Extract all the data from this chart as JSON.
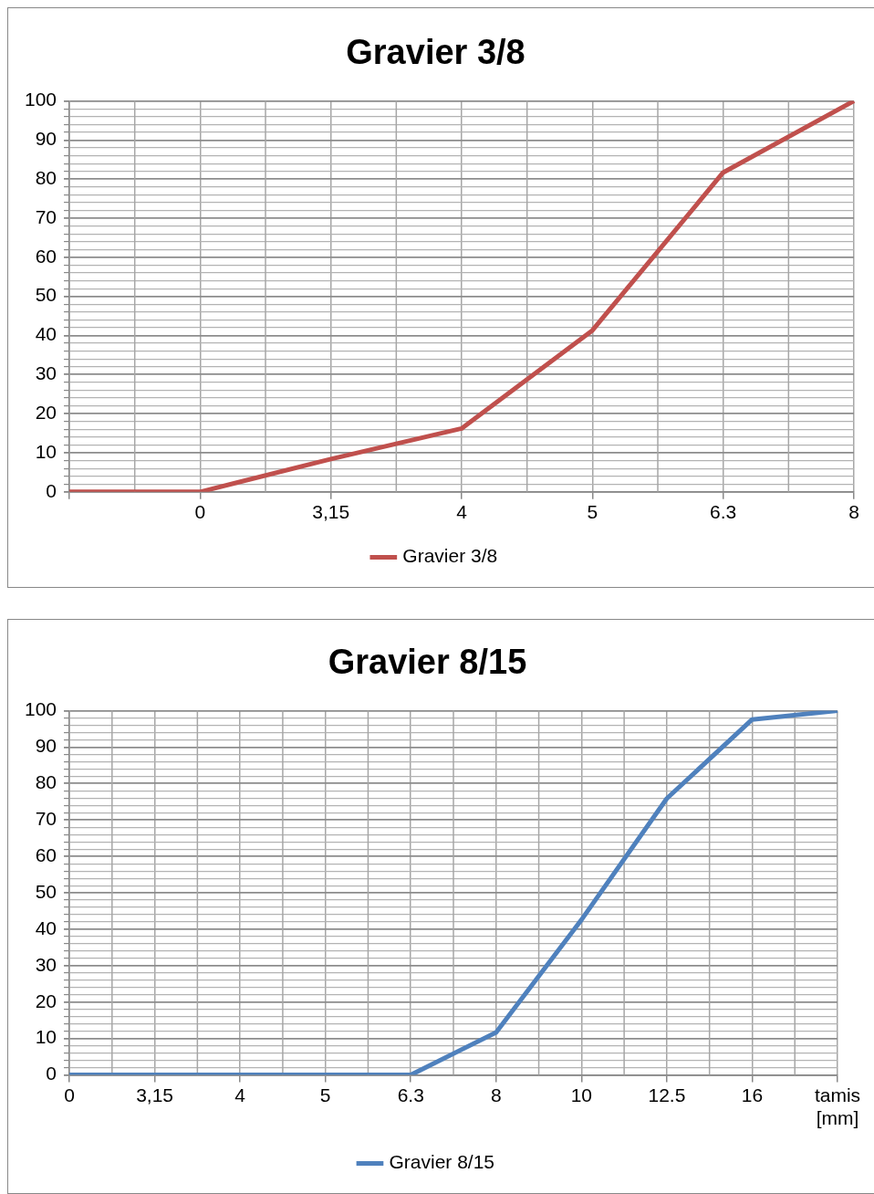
{
  "chart_data": [
    {
      "type": "line",
      "title": "Gravier 3/8",
      "categories": [
        null,
        "0",
        "3,15",
        "4",
        "5",
        "6.3",
        "8"
      ],
      "series": [
        {
          "name": "Gravier 3/8",
          "color": "#c0504d",
          "values": [
            0,
            0,
            8.4,
            16.2,
            41.3,
            81.7,
            100
          ]
        }
      ],
      "ylim": [
        0,
        100
      ],
      "yticks": [
        0,
        {
          "value": 2,
          "label": null
        },
        {
          "value": 4,
          "label": null
        },
        {
          "value": 6,
          "label": null
        },
        {
          "value": 8,
          "label": null
        },
        10,
        {
          "value": 12,
          "label": null
        },
        {
          "value": 14,
          "label": null
        },
        {
          "value": 16,
          "label": null
        },
        {
          "value": 18,
          "label": null
        },
        20,
        {
          "value": 22,
          "label": null
        },
        {
          "value": 24,
          "label": null
        },
        {
          "value": 26,
          "label": null
        },
        {
          "value": 28,
          "label": null
        },
        30,
        {
          "value": 32,
          "label": null
        },
        {
          "value": 34,
          "label": null
        },
        {
          "value": 36,
          "label": null
        },
        {
          "value": 38,
          "label": null
        },
        40,
        {
          "value": 42,
          "label": null
        },
        {
          "value": 44,
          "label": null
        },
        {
          "value": 46,
          "label": null
        },
        {
          "value": 48,
          "label": null
        },
        50,
        {
          "value": 52,
          "label": null
        },
        {
          "value": 54,
          "label": null
        },
        {
          "value": 56,
          "label": null
        },
        {
          "value": 58,
          "label": null
        },
        60,
        {
          "value": 62,
          "label": null
        },
        {
          "value": 64,
          "label": null
        },
        {
          "value": 66,
          "label": null
        },
        {
          "value": 68,
          "label": null
        },
        70,
        {
          "value": 72,
          "label": null
        },
        {
          "value": 74,
          "label": null
        },
        {
          "value": 76,
          "label": null
        },
        {
          "value": 78,
          "label": null
        },
        80,
        {
          "value": 82,
          "label": null
        },
        {
          "value": 84,
          "label": null
        },
        {
          "value": 86,
          "label": null
        },
        {
          "value": 88,
          "label": null
        },
        90,
        {
          "value": 92,
          "label": null
        },
        {
          "value": 94,
          "label": null
        },
        {
          "value": 96,
          "label": null
        },
        {
          "value": 98,
          "label": null
        },
        100
      ],
      "grid": true,
      "legend": "bottom"
    },
    {
      "type": "line",
      "title": "Gravier 8/15",
      "categories": [
        "0",
        "3,15",
        "4",
        "5",
        "6.3",
        "8",
        "10",
        "12.5",
        "16",
        "tamis [mm]"
      ],
      "series": [
        {
          "name": "Gravier 8/15",
          "color": "#4f81bd",
          "values": [
            0,
            0,
            0,
            0,
            0,
            11.7,
            42.6,
            75.9,
            97.6,
            100
          ]
        }
      ],
      "ylim": [
        0,
        100
      ],
      "yticks": [
        0,
        {
          "value": 2,
          "label": null
        },
        {
          "value": 4,
          "label": null
        },
        {
          "value": 6,
          "label": null
        },
        {
          "value": 8,
          "label": null
        },
        10,
        {
          "value": 12,
          "label": null
        },
        {
          "value": 14,
          "label": null
        },
        {
          "value": 16,
          "label": null
        },
        {
          "value": 18,
          "label": null
        },
        20,
        {
          "value": 22,
          "label": null
        },
        {
          "value": 24,
          "label": null
        },
        {
          "value": 26,
          "label": null
        },
        {
          "value": 28,
          "label": null
        },
        30,
        {
          "value": 32,
          "label": null
        },
        {
          "value": 34,
          "label": null
        },
        {
          "value": 36,
          "label": null
        },
        {
          "value": 38,
          "label": null
        },
        40,
        {
          "value": 42,
          "label": null
        },
        {
          "value": 44,
          "label": null
        },
        {
          "value": 46,
          "label": null
        },
        {
          "value": 48,
          "label": null
        },
        50,
        {
          "value": 52,
          "label": null
        },
        {
          "value": 54,
          "label": null
        },
        {
          "value": 56,
          "label": null
        },
        {
          "value": 58,
          "label": null
        },
        60,
        {
          "value": 62,
          "label": null
        },
        {
          "value": 64,
          "label": null
        },
        {
          "value": 66,
          "label": null
        },
        {
          "value": 68,
          "label": null
        },
        70,
        {
          "value": 72,
          "label": null
        },
        {
          "value": 74,
          "label": null
        },
        {
          "value": 76,
          "label": null
        },
        {
          "value": 78,
          "label": null
        },
        80,
        {
          "value": 82,
          "label": null
        },
        {
          "value": 84,
          "label": null
        },
        {
          "value": 86,
          "label": null
        },
        {
          "value": 88,
          "label": null
        },
        90,
        {
          "value": 92,
          "label": null
        },
        {
          "value": 94,
          "label": null
        },
        {
          "value": 96,
          "label": null
        },
        {
          "value": 98,
          "label": null
        },
        100
      ],
      "grid": true,
      "legend": "bottom"
    }
  ]
}
